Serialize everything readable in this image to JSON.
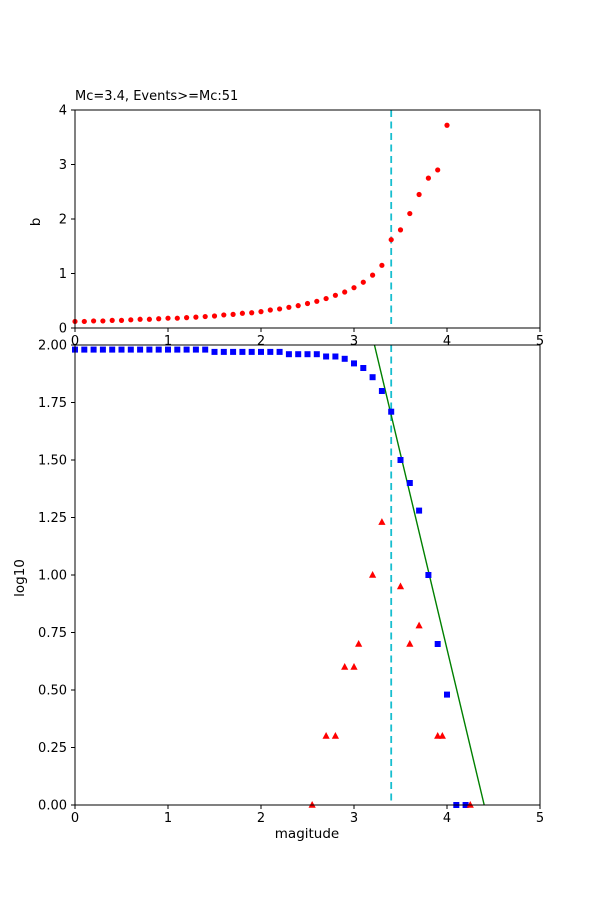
{
  "figure": {
    "background": "#ffffff"
  },
  "colors": {
    "red": "#ff0000",
    "blue": "#0000ff",
    "green": "#008000",
    "cyan": "#17becf",
    "axis": "#000000"
  },
  "chart_data": [
    {
      "type": "scatter",
      "name": "b-value-vs-magnitude-cutoff",
      "title": "Mc=3.4, Events>=Mc:51",
      "xlabel": "",
      "ylabel": "b",
      "xlim": [
        0,
        5
      ],
      "ylim": [
        0,
        4
      ],
      "xticks": [
        0,
        1,
        2,
        3,
        4,
        5
      ],
      "yticks": [
        0,
        1,
        2,
        3,
        4
      ],
      "grid": false,
      "vline": {
        "x": 3.4,
        "style": "dashed",
        "color": "#17becf"
      },
      "series": [
        {
          "name": "b-values",
          "marker": "circle",
          "color": "#ff0000",
          "x": [
            0,
            0.1,
            0.2,
            0.3,
            0.4,
            0.5,
            0.6,
            0.7,
            0.8,
            0.9,
            1,
            1.1,
            1.2,
            1.3,
            1.4,
            1.5,
            1.6,
            1.7,
            1.8,
            1.9,
            2,
            2.1,
            2.2,
            2.3,
            2.4,
            2.5,
            2.6,
            2.7,
            2.8,
            2.9,
            3,
            3.1,
            3.2,
            3.3,
            3.4,
            3.5,
            3.6,
            3.7,
            3.8,
            3.9,
            4
          ],
          "y": [
            0.12,
            0.12,
            0.13,
            0.13,
            0.14,
            0.14,
            0.15,
            0.16,
            0.16,
            0.17,
            0.18,
            0.18,
            0.19,
            0.2,
            0.21,
            0.22,
            0.24,
            0.25,
            0.27,
            0.28,
            0.3,
            0.33,
            0.35,
            0.38,
            0.41,
            0.45,
            0.49,
            0.54,
            0.6,
            0.66,
            0.74,
            0.84,
            0.97,
            1.15,
            1.62,
            1.8,
            2.1,
            2.45,
            2.75,
            2.9,
            3.72
          ]
        }
      ]
    },
    {
      "type": "scatter",
      "name": "frequency-magnitude-distribution",
      "title": "",
      "xlabel": "magitude",
      "ylabel": "log10",
      "xlim": [
        0,
        5
      ],
      "ylim": [
        0,
        2
      ],
      "xticks": [
        0,
        1,
        2,
        3,
        4,
        5
      ],
      "yticks": [
        0,
        0.25,
        0.5,
        0.75,
        1,
        1.25,
        1.5,
        1.75,
        2
      ],
      "ytick_labels": [
        "0.00",
        "0.25",
        "0.50",
        "0.75",
        "1.00",
        "1.25",
        "1.50",
        "1.75",
        "2.00"
      ],
      "grid": false,
      "vline": {
        "x": 3.4,
        "style": "dashed",
        "color": "#17becf"
      },
      "fit_line": {
        "name": "gutenberg-richter-fit",
        "color": "#008000",
        "points": [
          [
            3.22,
            2.0
          ],
          [
            4.4,
            0.0
          ]
        ]
      },
      "series": [
        {
          "name": "cumulative-counts",
          "marker": "square",
          "color": "#0000ff",
          "x": [
            0,
            0.1,
            0.2,
            0.3,
            0.4,
            0.5,
            0.6,
            0.7,
            0.8,
            0.9,
            1,
            1.1,
            1.2,
            1.3,
            1.4,
            1.5,
            1.6,
            1.7,
            1.8,
            1.9,
            2,
            2.1,
            2.2,
            2.3,
            2.4,
            2.5,
            2.6,
            2.7,
            2.8,
            2.9,
            3,
            3.1,
            3.2,
            3.3,
            3.4,
            3.5,
            3.6,
            3.7,
            3.8,
            3.9,
            4,
            4.1,
            4.2
          ],
          "y": [
            1.98,
            1.98,
            1.98,
            1.98,
            1.98,
            1.98,
            1.98,
            1.98,
            1.98,
            1.98,
            1.98,
            1.98,
            1.98,
            1.98,
            1.98,
            1.97,
            1.97,
            1.97,
            1.97,
            1.97,
            1.97,
            1.97,
            1.97,
            1.96,
            1.96,
            1.96,
            1.96,
            1.95,
            1.95,
            1.94,
            1.92,
            1.9,
            1.86,
            1.8,
            1.71,
            1.5,
            1.4,
            1.28,
            1.0,
            0.7,
            0.48,
            0,
            0
          ]
        },
        {
          "name": "bin-counts",
          "marker": "triangle",
          "color": "#ff0000",
          "x": [
            2.55,
            2.7,
            2.8,
            2.9,
            3.0,
            3.05,
            3.2,
            3.3,
            3.5,
            3.6,
            3.7,
            3.9,
            3.95,
            4.25
          ],
          "y": [
            0.0,
            0.3,
            0.3,
            0.6,
            0.6,
            0.7,
            1.0,
            1.23,
            0.95,
            0.7,
            0.78,
            0.3,
            0.3,
            0.0
          ]
        }
      ]
    }
  ]
}
